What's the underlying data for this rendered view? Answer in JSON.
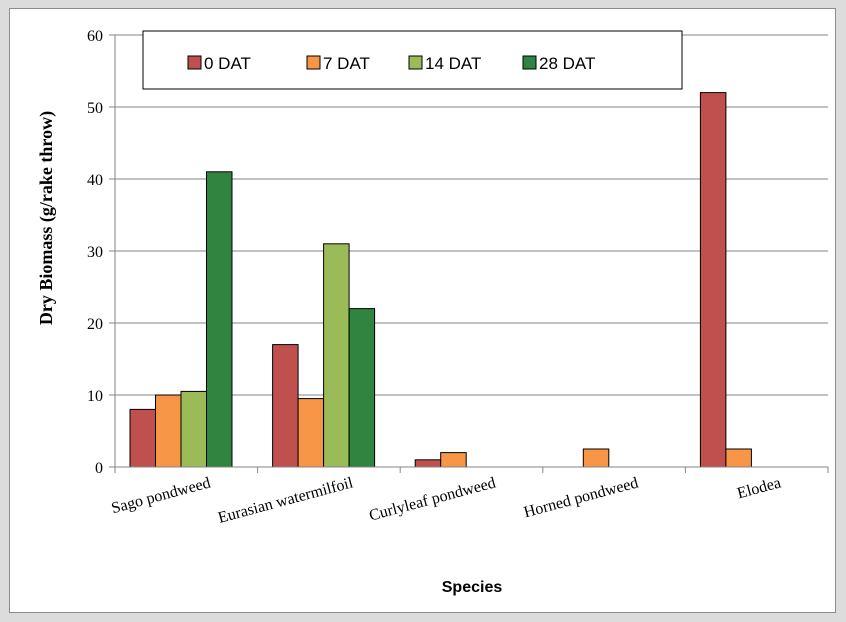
{
  "chart_data": {
    "type": "bar",
    "title": "",
    "xlabel": "Species",
    "ylabel": "Dry Biomass (g/rake throw)",
    "ylim": [
      0,
      60
    ],
    "yticks": [
      0,
      10,
      20,
      30,
      40,
      50,
      60
    ],
    "grid": true,
    "legend_position": "top-left",
    "categories": [
      "Sago pondweed",
      "Eurasian watermilfoil",
      "Curlyleaf pondweed",
      "Horned pondweed",
      "Elodea"
    ],
    "series": [
      {
        "name": "0 DAT",
        "color": "#c0504d",
        "values": [
          8,
          17,
          1,
          0,
          52
        ]
      },
      {
        "name": "7 DAT",
        "color": "#f79646",
        "values": [
          10,
          9.5,
          2,
          2.5,
          2.5
        ]
      },
      {
        "name": "14 DAT",
        "color": "#9bbb59",
        "values": [
          10.5,
          31,
          0,
          0,
          0
        ]
      },
      {
        "name": "28 DAT",
        "color": "#31843f",
        "values": [
          41,
          22,
          0,
          0,
          0
        ]
      }
    ]
  }
}
